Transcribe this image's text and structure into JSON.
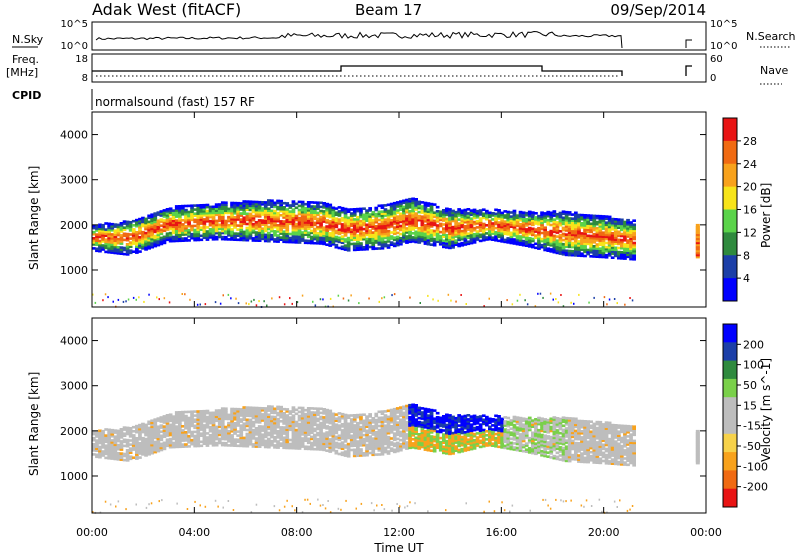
{
  "header": {
    "station": "Adak West (fitACF)",
    "beam": "Beam 17",
    "date": "09/Sep/2014"
  },
  "top_panels": {
    "nsky_label": "N.Sky",
    "nsky_ticks": [
      "10^5",
      "10^0"
    ],
    "nsearch_label": "N.Search",
    "nsearch_ticks": [
      "10^5",
      "10^0"
    ],
    "freq_label_1": "Freq.",
    "freq_label_2": "[MHz]",
    "freq_ticks": [
      "18",
      "8"
    ],
    "nave_label": "Nave",
    "nave_ticks": [
      "60",
      "0"
    ],
    "cpid_label": "CPID",
    "cpid_text": "normalsound (fast) 157 RF"
  },
  "colors": {
    "power": [
      "#0000ff",
      "#1c3fa8",
      "#2f8a3e",
      "#5ad34a",
      "#f7e41a",
      "#f8a21c",
      "#f06a12",
      "#e81414"
    ],
    "velocity": [
      "#e81414",
      "#f06a12",
      "#f8a21c",
      "#f7d24a",
      "#bdbdbd",
      "#bdbdbd",
      "#7ad04a",
      "#2f8a3e",
      "#1c3fa8",
      "#0000ff"
    ]
  },
  "chart_data": [
    {
      "type": "heatmap",
      "title": "",
      "xlabel": "Time UT",
      "ylabel": "Slant Range [km]",
      "x_ticks": [
        "00:00",
        "04:00",
        "08:00",
        "12:00",
        "16:00",
        "20:00",
        "00:00"
      ],
      "y_ticks": [
        "1000",
        "2000",
        "3000",
        "4000"
      ],
      "xlim": [
        0,
        24
      ],
      "ylim": [
        180,
        4500
      ],
      "colorbar_label": "Power [dB]",
      "colorbar_ticks": [
        "4",
        "8",
        "12",
        "16",
        "20",
        "24",
        "28"
      ],
      "colorbar_range": [
        0,
        32
      ],
      "band": [
        {
          "t": 0.0,
          "lo": 1500,
          "hi": 1900
        },
        {
          "t": 1.5,
          "lo": 1400,
          "hi": 2000
        },
        {
          "t": 3.0,
          "lo": 1700,
          "hi": 2300
        },
        {
          "t": 5.0,
          "lo": 1750,
          "hi": 2400
        },
        {
          "t": 7.0,
          "lo": 1700,
          "hi": 2450
        },
        {
          "t": 9.0,
          "lo": 1650,
          "hi": 2400
        },
        {
          "t": 10.0,
          "lo": 1500,
          "hi": 2250
        },
        {
          "t": 11.5,
          "lo": 1550,
          "hi": 2350
        },
        {
          "t": 12.5,
          "lo": 1700,
          "hi": 2500
        },
        {
          "t": 14.0,
          "lo": 1550,
          "hi": 2250
        },
        {
          "t": 15.5,
          "lo": 1750,
          "hi": 2250
        },
        {
          "t": 17.0,
          "lo": 1600,
          "hi": 2200
        },
        {
          "t": 18.5,
          "lo": 1400,
          "hi": 2200
        },
        {
          "t": 20.0,
          "lo": 1350,
          "hi": 2100
        },
        {
          "t": 21.2,
          "lo": 1300,
          "hi": 2000
        }
      ]
    },
    {
      "type": "heatmap",
      "title": "",
      "xlabel": "Time UT",
      "ylabel": "Slant Range [km]",
      "x_ticks": [
        "00:00",
        "04:00",
        "08:00",
        "12:00",
        "16:00",
        "20:00",
        "00:00"
      ],
      "y_ticks": [
        "1000",
        "2000",
        "3000",
        "4000"
      ],
      "xlim": [
        0,
        24
      ],
      "ylim": [
        180,
        4500
      ],
      "colorbar_label": "Velocity [m s^-1]",
      "colorbar_ticks": [
        "200",
        "100",
        "50",
        "15",
        "-15",
        "-50",
        "-100",
        "-200"
      ],
      "colorbar_range": [
        -250,
        250
      ],
      "band": [
        {
          "t": 0.0,
          "lo": 1500,
          "hi": 1900
        },
        {
          "t": 1.5,
          "lo": 1400,
          "hi": 2000
        },
        {
          "t": 3.0,
          "lo": 1700,
          "hi": 2300
        },
        {
          "t": 5.0,
          "lo": 1750,
          "hi": 2400
        },
        {
          "t": 7.0,
          "lo": 1700,
          "hi": 2450
        },
        {
          "t": 9.0,
          "lo": 1650,
          "hi": 2400
        },
        {
          "t": 10.0,
          "lo": 1500,
          "hi": 2250
        },
        {
          "t": 11.5,
          "lo": 1550,
          "hi": 2350
        },
        {
          "t": 12.5,
          "lo": 1700,
          "hi": 2500
        },
        {
          "t": 14.0,
          "lo": 1550,
          "hi": 2250
        },
        {
          "t": 15.5,
          "lo": 1750,
          "hi": 2250
        },
        {
          "t": 17.0,
          "lo": 1600,
          "hi": 2200
        },
        {
          "t": 18.5,
          "lo": 1400,
          "hi": 2200
        },
        {
          "t": 20.0,
          "lo": 1350,
          "hi": 2100
        },
        {
          "t": 21.2,
          "lo": 1300,
          "hi": 2000
        }
      ]
    }
  ]
}
